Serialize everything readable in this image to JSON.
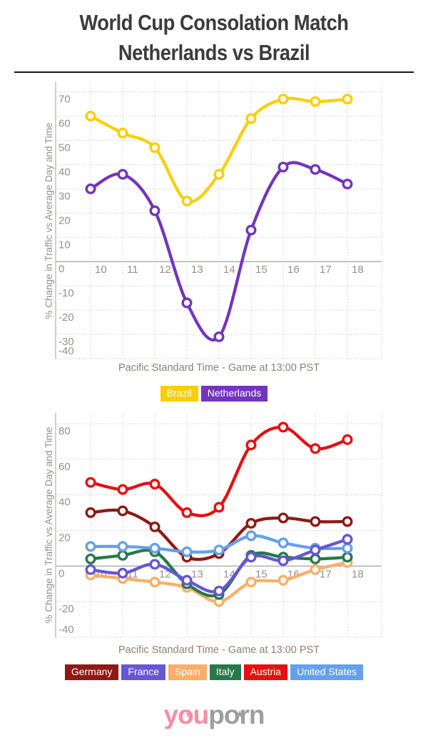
{
  "header": {
    "title_line1": "World Cup Consolation Match",
    "title_line2": "Netherlands vs Brazil"
  },
  "chart_data": [
    {
      "type": "line",
      "title": "",
      "x": [
        10,
        11,
        12,
        13,
        14,
        15,
        16,
        17,
        18
      ],
      "xlabel": "Pacific Standard Time - Game at 13:00 PST",
      "ylabel": "% Change in Traffic vs Average Day and Time",
      "ylim": [
        -40,
        74
      ],
      "yticks": [
        70,
        60,
        50,
        40,
        30,
        20,
        10,
        0,
        -10,
        -20,
        -30,
        -40
      ],
      "grid": true,
      "legend_position": "bottom",
      "series": [
        {
          "name": "Brazil",
          "color": "#FCCE0A",
          "z": 1,
          "values": [
            60,
            53,
            47,
            25,
            36,
            59,
            67,
            66,
            67
          ]
        },
        {
          "name": "Netherlands",
          "color": "#7434BE",
          "z": 2,
          "values": [
            30,
            36,
            21,
            -17,
            -31,
            13,
            39,
            38,
            32
          ]
        }
      ]
    },
    {
      "type": "line",
      "title": "",
      "x": [
        10,
        11,
        12,
        13,
        14,
        15,
        16,
        17,
        18
      ],
      "xlabel": "Pacific Standard Time - Game at 13:00 PST",
      "ylabel": "% Change in Traffic vs Average Day and Time",
      "ylim": [
        -40,
        86
      ],
      "yticks": [
        80,
        60,
        40,
        20,
        0,
        -20,
        -40
      ],
      "grid": true,
      "legend_position": "bottom",
      "series": [
        {
          "name": "Germany",
          "color": "#8C1A16",
          "z": 3,
          "values": [
            30,
            31,
            22,
            5,
            7,
            24,
            27,
            25,
            25
          ]
        },
        {
          "name": "France",
          "color": "#6657D3",
          "z": 6,
          "values": [
            -2,
            -4,
            1,
            -8,
            -14,
            5,
            3,
            9,
            15
          ]
        },
        {
          "name": "Spain",
          "color": "#FCAE68",
          "z": 1,
          "values": [
            -5,
            -7,
            -9,
            -12,
            -20,
            -9,
            -8,
            -2,
            2
          ]
        },
        {
          "name": "Italy",
          "color": "#28784A",
          "z": 2,
          "values": [
            4,
            6,
            8,
            -10,
            -16,
            6,
            5,
            4,
            5
          ]
        },
        {
          "name": "Austria",
          "color": "#E51010",
          "z": 4,
          "values": [
            47,
            43,
            46,
            30,
            33,
            68,
            78,
            66,
            71
          ]
        },
        {
          "name": "United States",
          "color": "#64A0EC",
          "z": 5,
          "values": [
            11,
            11,
            10,
            8,
            9,
            17,
            13,
            10,
            10
          ]
        }
      ]
    }
  ],
  "footer_logo": {
    "text_primary": "you",
    "text_secondary": "porn",
    "primary_color": "#F48FA3",
    "secondary_color": "#9E9E9E",
    "star": "★"
  }
}
